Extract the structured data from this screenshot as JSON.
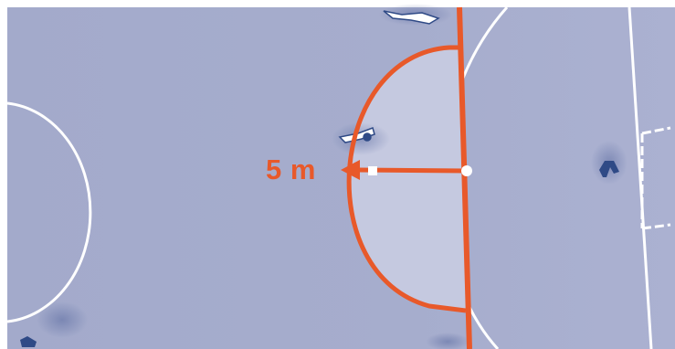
{
  "diagram": {
    "distance_label": "5 m"
  },
  "colors": {
    "pitch": "#a3aacb",
    "pitch_light": "#acb3d2",
    "zone_fill": "#c5c9e0",
    "accent": "#e8592a",
    "white_lines": "#ffffff",
    "player_dark": "#2f4a86"
  }
}
